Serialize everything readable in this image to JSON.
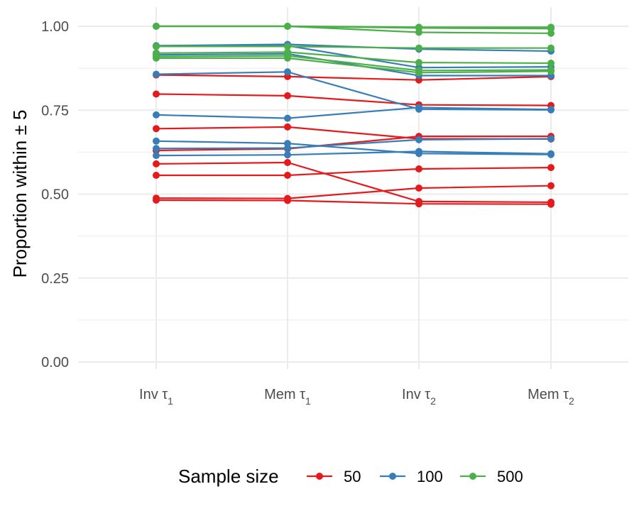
{
  "chart_data": {
    "type": "line",
    "ylabel": "Proportion within ± 5",
    "xlabel": "",
    "categories": [
      {
        "base": "Inv τ",
        "sub": "1"
      },
      {
        "base": "Mem τ",
        "sub": "1"
      },
      {
        "base": "Inv τ",
        "sub": "2"
      },
      {
        "base": "Mem τ",
        "sub": "2"
      }
    ],
    "ylim": [
      0,
      1
    ],
    "yticks": [
      "0.00",
      "0.25",
      "0.50",
      "0.75",
      "1.00"
    ],
    "ytick_values": [
      0,
      0.25,
      0.5,
      0.75,
      1.0
    ],
    "grid": true,
    "legend": {
      "title": "Sample size",
      "position": "bottom",
      "entries": [
        {
          "label": "50",
          "color": "#E41A1C"
        },
        {
          "label": "100",
          "color": "#377EB8"
        },
        {
          "label": "500",
          "color": "#4DAF4A"
        }
      ]
    },
    "series": [
      {
        "group": "50",
        "values": [
          0.855,
          0.85,
          0.84,
          0.85
        ]
      },
      {
        "group": "50",
        "values": [
          0.798,
          0.793,
          0.766,
          0.764
        ]
      },
      {
        "group": "50",
        "values": [
          0.695,
          0.7,
          0.665,
          0.664
        ]
      },
      {
        "group": "50",
        "values": [
          0.63,
          0.635,
          0.672,
          0.672
        ]
      },
      {
        "group": "50",
        "values": [
          0.59,
          0.594,
          0.478,
          0.476
        ]
      },
      {
        "group": "50",
        "values": [
          0.556,
          0.556,
          0.575,
          0.579
        ]
      },
      {
        "group": "50",
        "values": [
          0.488,
          0.487,
          0.518,
          0.525
        ]
      },
      {
        "group": "50",
        "values": [
          0.482,
          0.481,
          0.471,
          0.47
        ]
      },
      {
        "group": "100",
        "values": [
          0.942,
          0.946,
          0.932,
          0.926
        ]
      },
      {
        "group": "100",
        "values": [
          0.94,
          0.942,
          0.877,
          0.879
        ]
      },
      {
        "group": "100",
        "values": [
          0.915,
          0.918,
          0.853,
          0.853
        ]
      },
      {
        "group": "100",
        "values": [
          0.857,
          0.864,
          0.753,
          0.751
        ]
      },
      {
        "group": "100",
        "values": [
          0.736,
          0.726,
          0.758,
          0.752
        ]
      },
      {
        "group": "100",
        "values": [
          0.658,
          0.651,
          0.621,
          0.618
        ]
      },
      {
        "group": "100",
        "values": [
          0.636,
          0.637,
          0.662,
          0.665
        ]
      },
      {
        "group": "100",
        "values": [
          0.615,
          0.617,
          0.627,
          0.62
        ]
      },
      {
        "group": "500",
        "values": [
          1.0,
          1.0,
          0.997,
          0.997
        ]
      },
      {
        "group": "500",
        "values": [
          1.0,
          1.0,
          0.995,
          0.993
        ]
      },
      {
        "group": "500",
        "values": [
          1.0,
          1.0,
          0.982,
          0.979
        ]
      },
      {
        "group": "500",
        "values": [
          0.94,
          0.94,
          0.935,
          0.935
        ]
      },
      {
        "group": "500",
        "values": [
          0.92,
          0.923,
          0.892,
          0.89
        ]
      },
      {
        "group": "500",
        "values": [
          0.91,
          0.912,
          0.868,
          0.87
        ]
      },
      {
        "group": "500",
        "values": [
          0.905,
          0.905,
          0.862,
          0.866
        ]
      }
    ]
  }
}
